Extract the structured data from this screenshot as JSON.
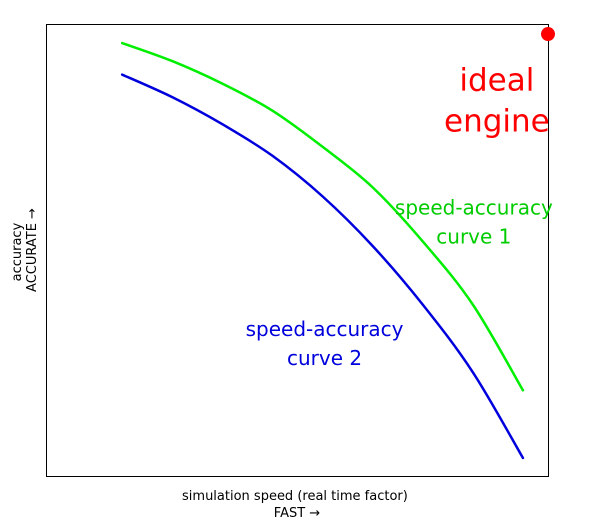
{
  "chart_data": {
    "type": "line",
    "title": "",
    "xlabel": [
      "simulation speed (real time factor)",
      "FAST →"
    ],
    "ylabel": [
      "accuracy",
      "ACCURATE →"
    ],
    "xlim": [
      0,
      1
    ],
    "ylim": [
      0,
      1
    ],
    "grid": false,
    "xticks": [],
    "yticks": [],
    "series": [
      {
        "name": "speed-accuracy curve 1",
        "color": "#00ee00",
        "x": [
          0.15,
          0.25,
          0.35,
          0.45,
          0.55,
          0.65,
          0.75,
          0.85,
          0.95
        ],
        "y": [
          0.96,
          0.92,
          0.87,
          0.81,
          0.73,
          0.64,
          0.52,
          0.38,
          0.19
        ]
      },
      {
        "name": "speed-accuracy curve 2",
        "color": "#0000dd",
        "x": [
          0.15,
          0.25,
          0.35,
          0.45,
          0.55,
          0.65,
          0.75,
          0.85,
          0.95
        ],
        "y": [
          0.89,
          0.84,
          0.78,
          0.71,
          0.62,
          0.51,
          0.38,
          0.23,
          0.04
        ]
      }
    ],
    "points": [
      {
        "name": "ideal engine",
        "color": "#ff0000",
        "x": 1.0,
        "y": 0.98
      }
    ],
    "annotations": [
      {
        "lines": [
          "ideal",
          "engine"
        ],
        "color": "#ff0000",
        "x": 0.898,
        "y": 0.855,
        "align": "center",
        "size": "large"
      },
      {
        "lines": [
          "speed-accuracy",
          "curve 1"
        ],
        "color": "#00cc00",
        "x": 0.852,
        "y": 0.58,
        "align": "center",
        "size": "medium"
      },
      {
        "lines": [
          "speed-accuracy",
          "curve 2"
        ],
        "color": "#0000dd",
        "x": 0.554,
        "y": 0.31,
        "align": "center",
        "size": "medium"
      }
    ]
  }
}
